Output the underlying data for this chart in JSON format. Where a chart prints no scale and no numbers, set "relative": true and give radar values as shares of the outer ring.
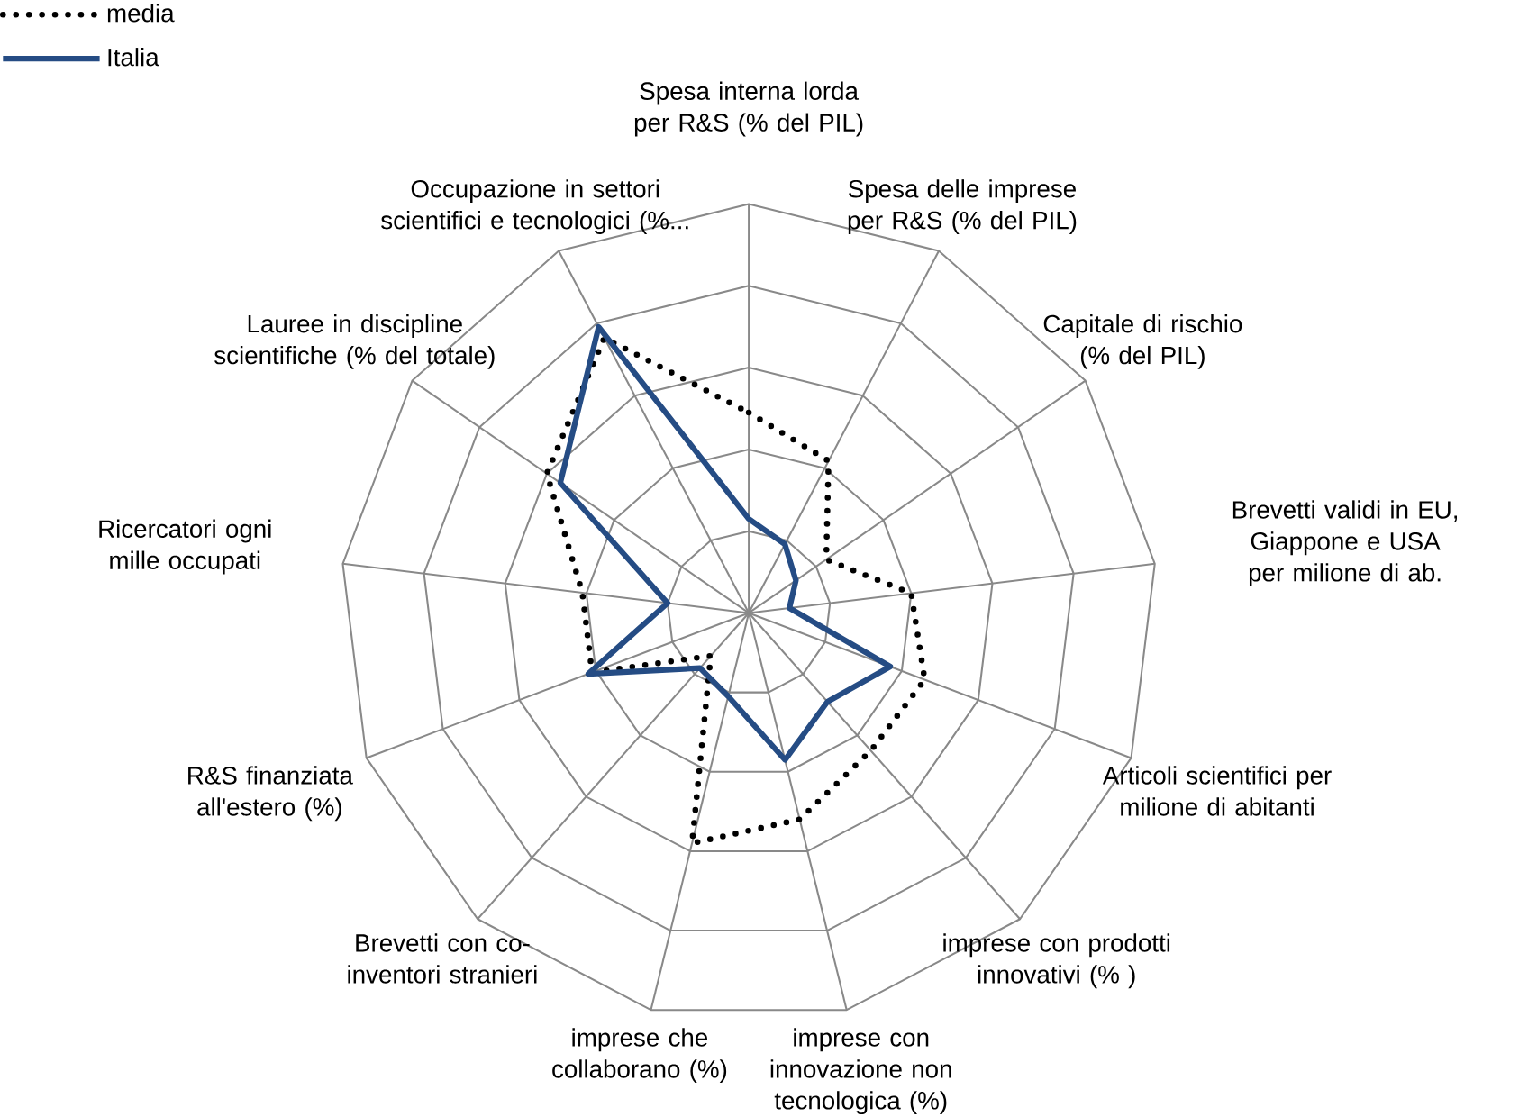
{
  "chart_data": {
    "type": "radar",
    "relative": true,
    "grid": true,
    "legend": "top left",
    "marker": "none",
    "categories": [
      "Spesa interna lorda per R&S  (% del PIL)",
      "Spesa delle imprese per R&S  (% del PIL)",
      "Capitale di rischio (% del PIL)",
      "Brevetti validi in EU, Giappone e USA per milione di ab.",
      "Articoli scientifici per milione di abitanti",
      "imprese con prodotti innovativi (% )",
      "imprese con innovazione non tecnologica (%)",
      "imprese che collaborano (%)",
      "Brevetti con co-inventori stranieri",
      "R&S finanziata all'estero (%)",
      "Ricercatori ogni mille occupati",
      "Lauree in discipline scientifiche (% del totale)",
      "Occupazione in settori scientifici e tecnologici (%..."
    ],
    "series": [
      {
        "name": "media",
        "color": "#000000",
        "line_style": "dotted",
        "values": [
          0.49,
          0.42,
          0.23,
          0.4,
          0.46,
          0.45,
          0.52,
          0.58,
          0.14,
          0.41,
          0.41,
          0.6,
          0.76
        ]
      },
      {
        "name": "Italia",
        "color": "#254c84",
        "line_style": "solid",
        "values": [
          0.23,
          0.19,
          0.14,
          0.1,
          0.37,
          0.29,
          0.37,
          0.21,
          0.18,
          0.42,
          0.2,
          0.56,
          0.79
        ]
      }
    ]
  }
}
